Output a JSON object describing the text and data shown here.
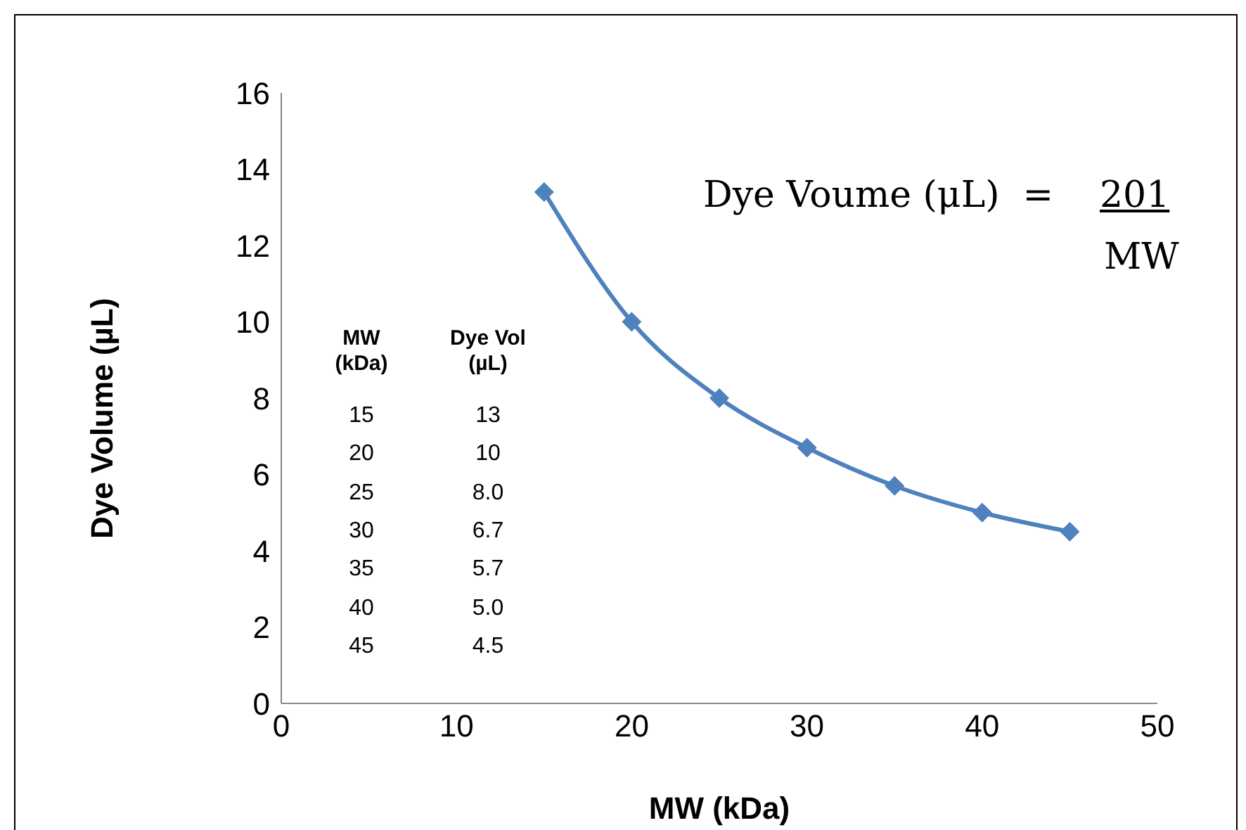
{
  "chart_data": {
    "type": "line",
    "xlabel": "MW (kDa)",
    "ylabel": "Dye Volume (µL)",
    "x": [
      15,
      20,
      25,
      30,
      35,
      40,
      45
    ],
    "series": [
      {
        "color": "#4f81bd",
        "values": [
          13.4,
          10.0,
          8.0,
          6.7,
          5.7,
          5.0,
          4.5
        ]
      }
    ],
    "xlim": [
      0,
      50
    ],
    "xticks": [
      0,
      10,
      20,
      30,
      40,
      50
    ],
    "ylim": [
      0,
      16
    ],
    "yticks": [
      0,
      2,
      4,
      6,
      8,
      10,
      12,
      14,
      16
    ],
    "grid": false,
    "legend": false,
    "marker": "diamond",
    "line_style": "solid",
    "annotations": [
      "MW (kDa)",
      "Dye Vol (µL)",
      "15",
      "13",
      "20",
      "10",
      "25",
      "8.0",
      "30",
      "6.7",
      "35",
      "5.7",
      "40",
      "5.0",
      "45",
      "4.5",
      "Dye Voume (μL)  =",
      "201",
      "MW"
    ]
  }
}
